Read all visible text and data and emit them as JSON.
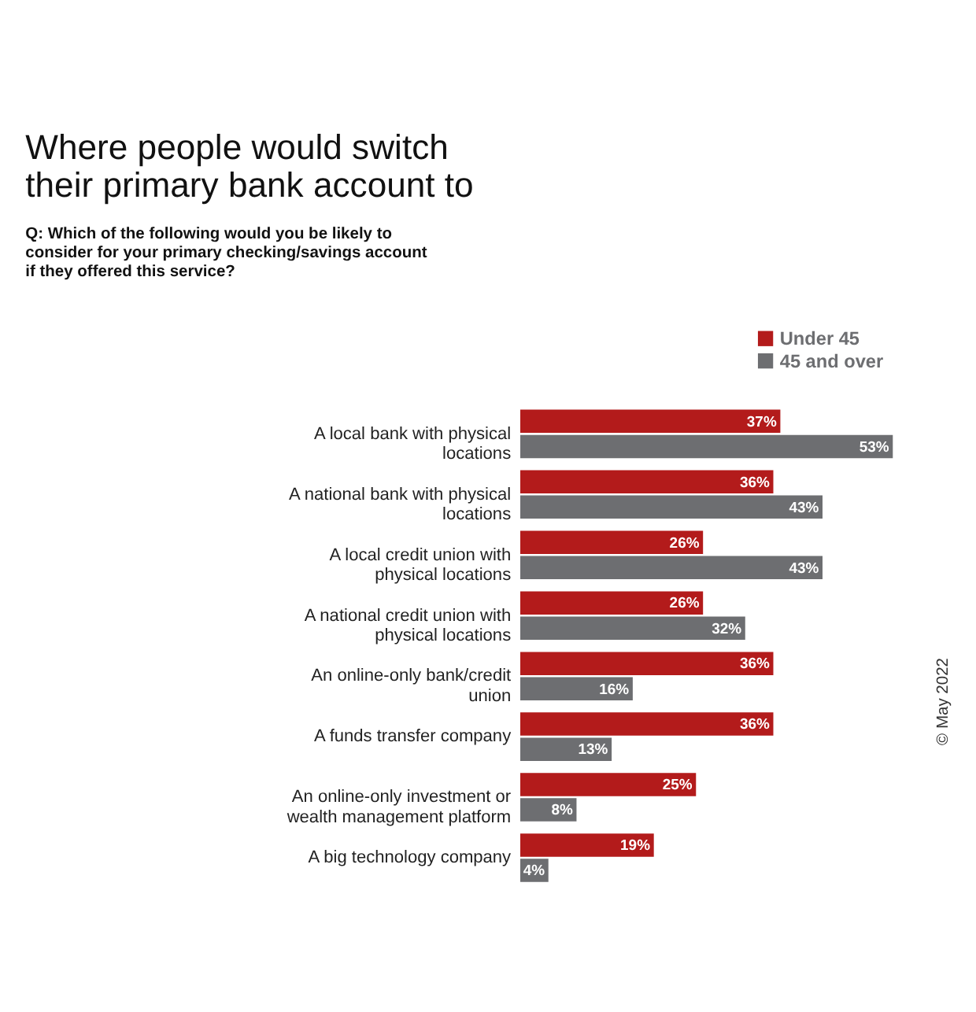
{
  "chart_data": {
    "type": "bar",
    "orientation": "horizontal",
    "title": "Where people would switch their primary bank account to",
    "subtitle": "Q: Which of the following would you be likely to consider for your primary checking/savings account if they offered this service?",
    "categories": [
      "A local bank with physical locations",
      "A national bank with physical locations",
      "A local credit union with physical locations",
      "A national credit union with physical locations",
      "An online-only bank/credit union",
      "A funds transfer company",
      "An online-only investment or wealth management platform",
      "A big technology company"
    ],
    "series": [
      {
        "name": "Under 45",
        "color": "#b31b1b",
        "values": [
          37,
          36,
          26,
          26,
          36,
          36,
          25,
          19
        ],
        "value_labels": [
          "37%",
          "36%",
          "26%",
          "26%",
          "36%",
          "36%",
          "25%",
          "19%"
        ]
      },
      {
        "name": "45 and over",
        "color": "#6d6e71",
        "values": [
          53,
          43,
          43,
          32,
          16,
          13,
          8,
          4
        ],
        "value_labels": [
          "53%",
          "43%",
          "43%",
          "32%",
          "16%",
          "13%",
          "8%",
          "4%"
        ]
      }
    ],
    "legend": "top right",
    "annotations": [
      "© May 2022"
    ]
  }
}
